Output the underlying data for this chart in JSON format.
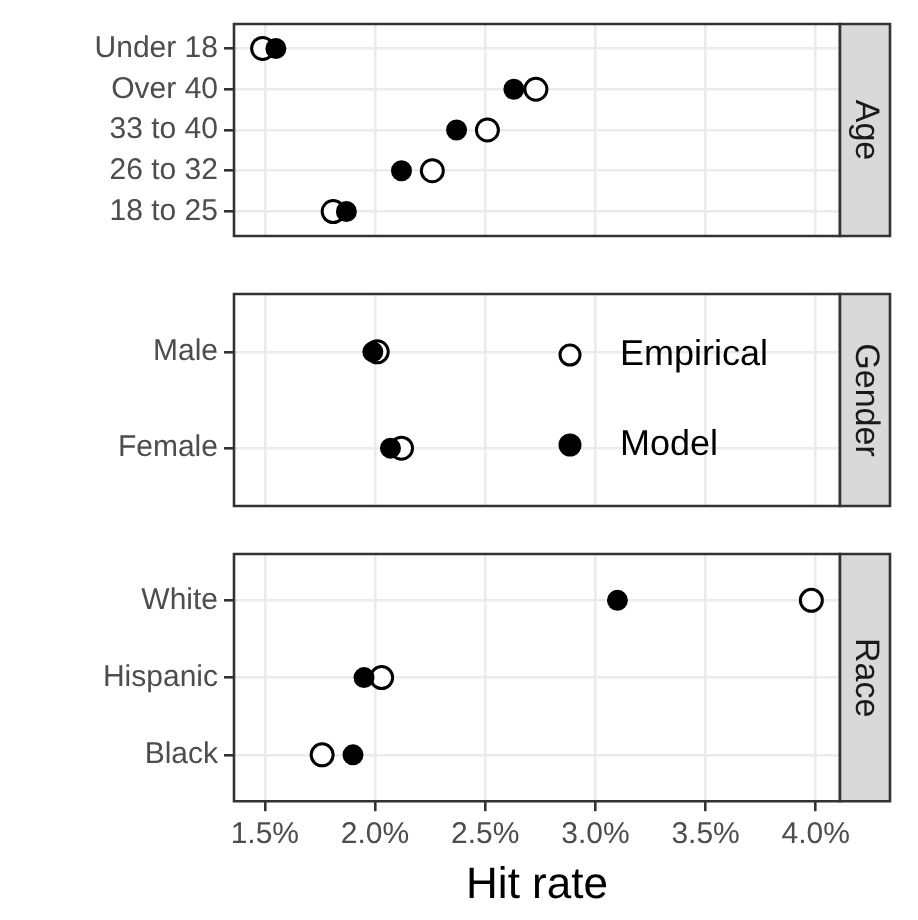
{
  "chart_data": [
    {
      "type": "scatter",
      "orientation": "horizontal",
      "title": "Age",
      "categories": [
        "Under 18",
        "Over 40",
        "33 to 40",
        "26 to 32",
        "18 to 25"
      ],
      "series": [
        {
          "color": "#ffffff",
          "values": [
            1.49,
            2.73,
            2.51,
            2.26,
            1.81
          ]
        },
        {
          "color": "#000000",
          "values": [
            1.55,
            2.63,
            2.37,
            2.12,
            1.87
          ]
        }
      ],
      "xlim": [
        1.36,
        4.11
      ],
      "xticks": [
        {
          "value": 1.5,
          "label": null
        },
        {
          "value": 2.0,
          "label": null
        },
        {
          "value": 2.5,
          "label": null
        },
        {
          "value": 3.0,
          "label": null
        },
        {
          "value": 3.5,
          "label": null
        },
        {
          "value": 4.0,
          "label": null
        }
      ],
      "grid": true,
      "marker": "circle",
      "tick_labels": "y"
    },
    {
      "type": "scatter",
      "orientation": "horizontal",
      "title": "Gender",
      "categories": [
        "Male",
        "Female"
      ],
      "series": [
        {
          "name": "Empirical",
          "color": "#ffffff",
          "values": [
            2.01,
            2.12
          ]
        },
        {
          "name": "Model",
          "color": "#000000",
          "values": [
            1.99,
            2.07
          ]
        }
      ],
      "xlim": [
        1.36,
        4.11
      ],
      "xticks": [
        {
          "value": 1.5,
          "label": null
        },
        {
          "value": 2.0,
          "label": null
        },
        {
          "value": 2.5,
          "label": null
        },
        {
          "value": 3.0,
          "label": null
        },
        {
          "value": 3.5,
          "label": null
        },
        {
          "value": 4.0,
          "label": null
        }
      ],
      "grid": true,
      "marker": "circle",
      "tick_labels": "y",
      "legend": "right"
    },
    {
      "type": "scatter",
      "orientation": "horizontal",
      "title": "Race",
      "xlabel": "Hit rate",
      "categories": [
        "White",
        "Hispanic",
        "Black"
      ],
      "series": [
        {
          "color": "#ffffff",
          "values": [
            3.98,
            2.03,
            1.76
          ]
        },
        {
          "color": "#000000",
          "values": [
            3.1,
            1.95,
            1.9
          ]
        }
      ],
      "xlim": [
        1.36,
        4.11
      ],
      "xticks": [
        {
          "value": 1.5,
          "label": "1.5%"
        },
        {
          "value": 2.0,
          "label": "2.0%"
        },
        {
          "value": 2.5,
          "label": "2.5%"
        },
        {
          "value": 3.0,
          "label": "3.0%"
        },
        {
          "value": 3.5,
          "label": "3.5%"
        },
        {
          "value": 4.0,
          "label": "4.0%"
        }
      ],
      "grid": true,
      "marker": "circle"
    }
  ]
}
